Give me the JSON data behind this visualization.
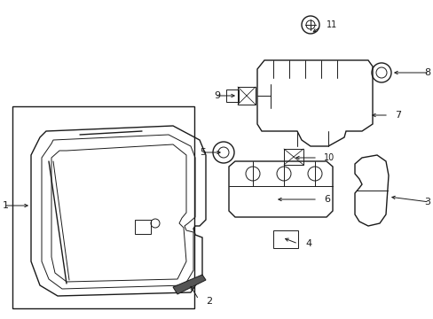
{
  "bg_color": "#ffffff",
  "line_color": "#1a1a1a",
  "fig_width": 4.89,
  "fig_height": 3.6,
  "dpi": 100,
  "label_fontsize": 8,
  "small_fontsize": 7
}
